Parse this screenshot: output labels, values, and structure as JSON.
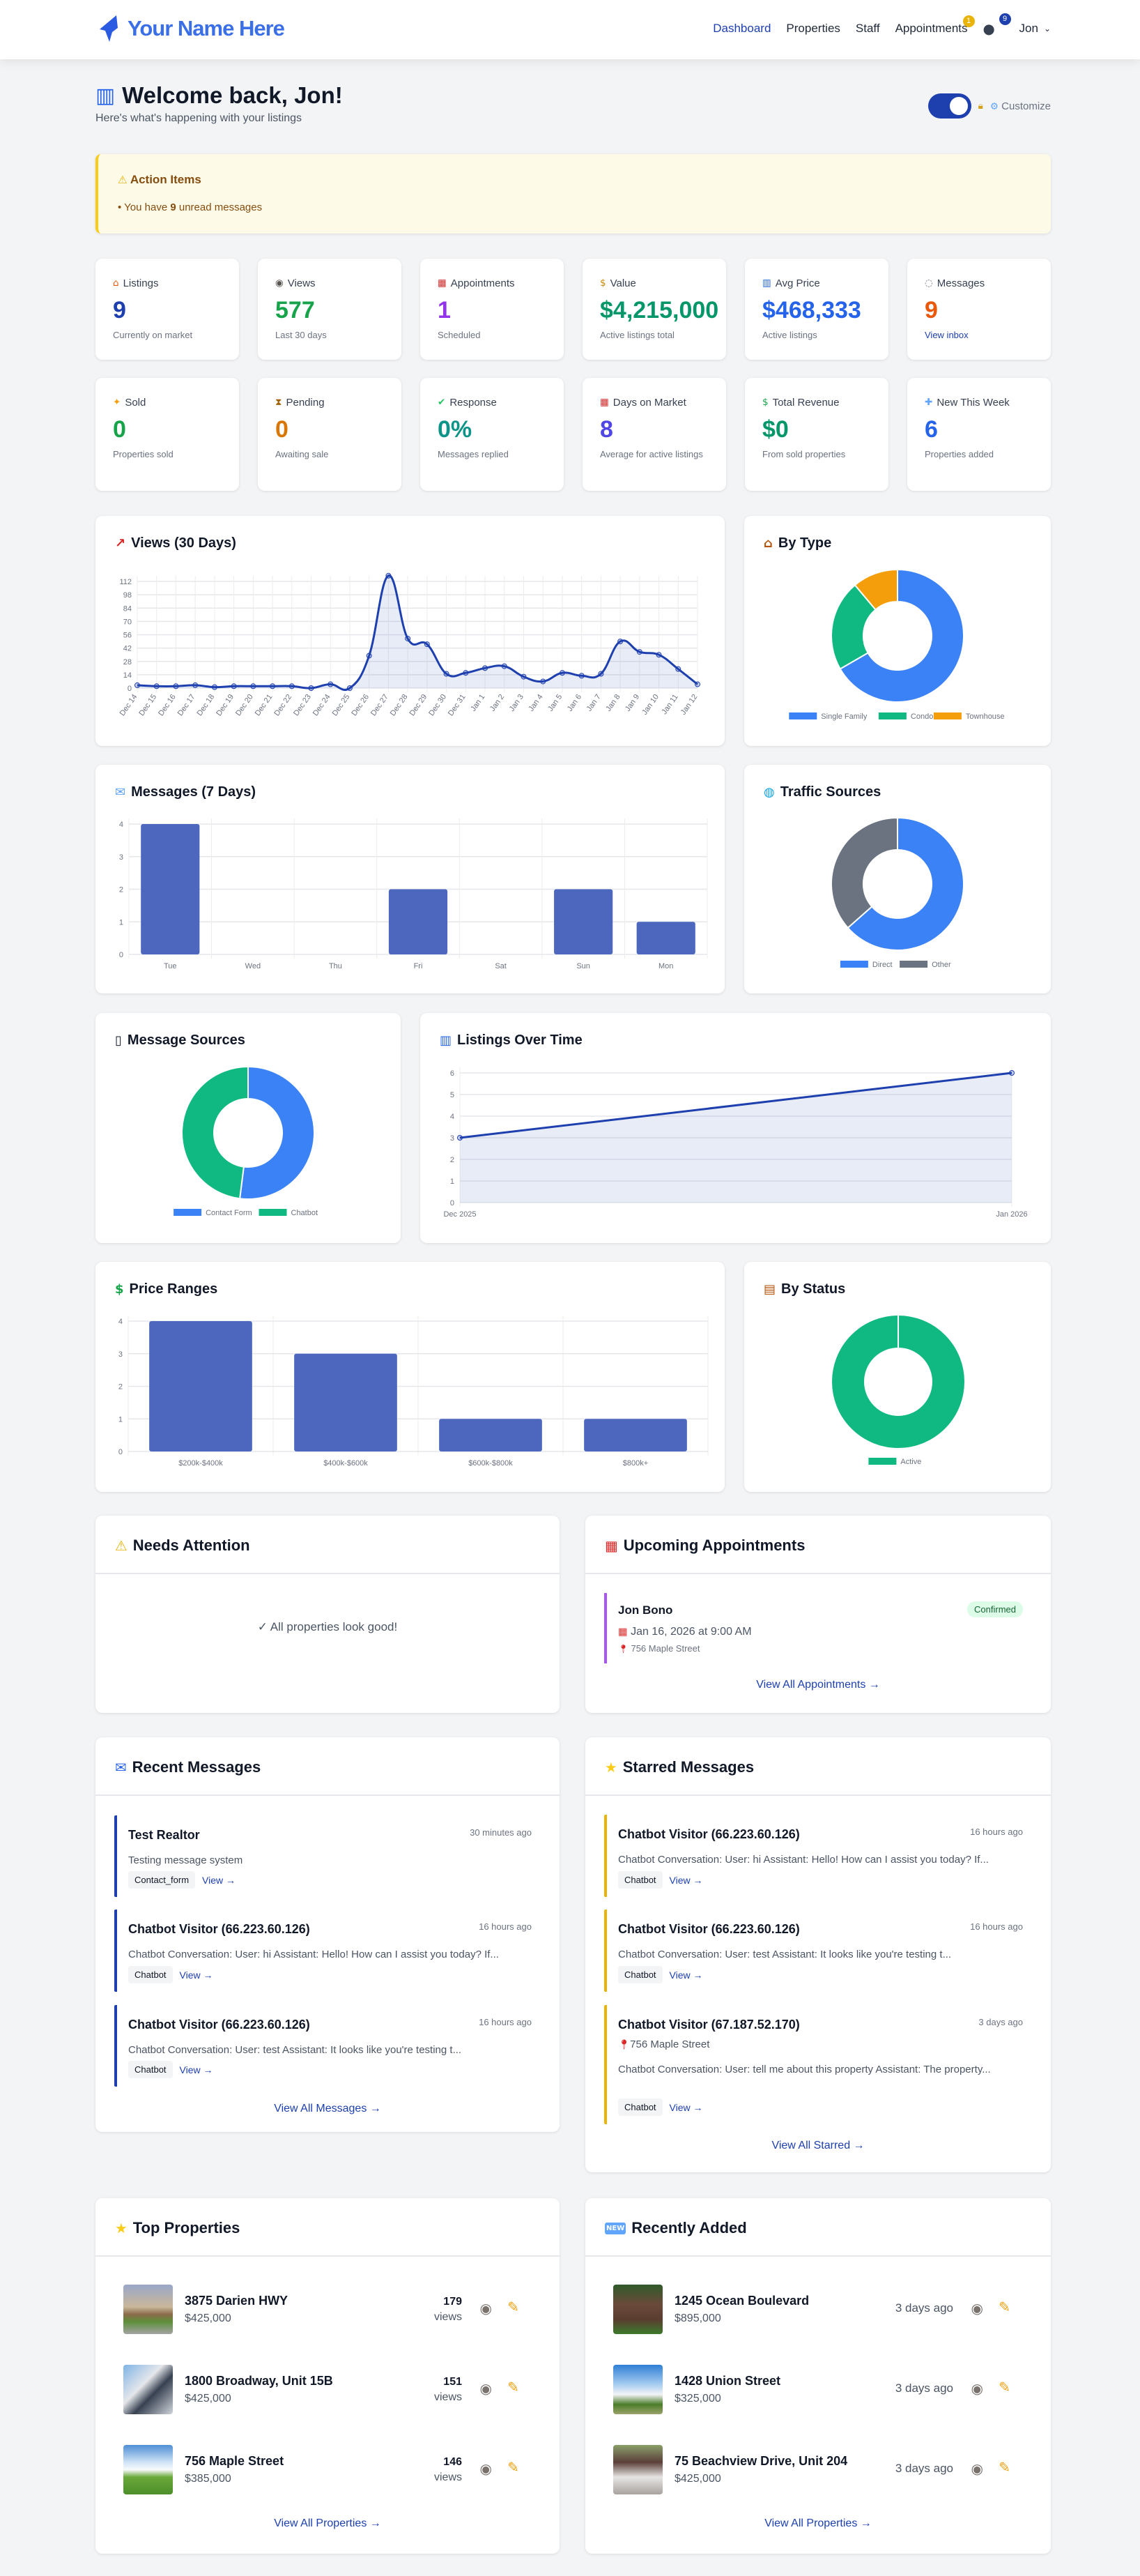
{
  "nav": {
    "brand": "Your Name Here",
    "links": [
      {
        "label": "Dashboard",
        "active": true
      },
      {
        "label": "Properties"
      },
      {
        "label": "Staff"
      },
      {
        "label": "Appointments",
        "badge": "1"
      }
    ],
    "messages_badge": "9",
    "user": "Jon"
  },
  "header": {
    "title": "Welcome back, Jon!",
    "subtitle": "Here's what's happening with your listings",
    "customize": "Customize",
    "toggle_on": true
  },
  "action_items": {
    "title": "Action Items",
    "items": [
      {
        "pre": "You have ",
        "count": "9",
        "post": " unread messages"
      }
    ]
  },
  "stats": [
    {
      "icon": "house-icon",
      "label": "Listings",
      "value": "9",
      "sub": "Currently on market",
      "color": "#1e40af"
    },
    {
      "icon": "eye-icon",
      "label": "Views",
      "value": "577",
      "sub": "Last 30 days",
      "color": "#16a34a"
    },
    {
      "icon": "calendar-icon",
      "label": "Appointments",
      "value": "1",
      "sub": "Scheduled",
      "color": "#9333ea"
    },
    {
      "icon": "money-bag-icon",
      "label": "Value",
      "value": "$4,215,000",
      "sub": "Active listings total",
      "color": "#059669"
    },
    {
      "icon": "bar-chart-icon",
      "label": "Avg Price",
      "value": "$468,333",
      "sub": "Active listings",
      "color": "#2563eb"
    },
    {
      "icon": "speech-bubble-icon",
      "label": "Messages",
      "value": "9",
      "sub": "View inbox",
      "sub_is_link": true,
      "color": "#ea580c"
    },
    {
      "icon": "party-popper-icon",
      "label": "Sold",
      "value": "0",
      "sub": "Properties sold",
      "color": "#16a34a"
    },
    {
      "icon": "hourglass-icon",
      "label": "Pending",
      "value": "0",
      "sub": "Awaiting sale",
      "color": "#d97706"
    },
    {
      "icon": "check-icon",
      "label": "Response",
      "value": "0%",
      "sub": "Messages replied",
      "color": "#0d9488"
    },
    {
      "icon": "calendar-icon",
      "label": "Days on Market",
      "value": "8",
      "sub": "Average for active listings",
      "color": "#4f46e5"
    },
    {
      "icon": "dollar-bill-icon",
      "label": "Total Revenue",
      "value": "$0",
      "sub": "From sold properties",
      "color": "#059669"
    },
    {
      "icon": "new-icon",
      "label": "New This Week",
      "value": "6",
      "sub": "Properties added",
      "color": "#2563eb"
    }
  ],
  "chart_data": [
    {
      "type": "line",
      "title": "Views (30 Days)",
      "smooth": true,
      "fill": true,
      "grid": true,
      "x": [
        "Dec 14",
        "Dec 15",
        "Dec 16",
        "Dec 17",
        "Dec 18",
        "Dec 19",
        "Dec 20",
        "Dec 21",
        "Dec 22",
        "Dec 23",
        "Dec 24",
        "Dec 25",
        "Dec 26",
        "Dec 27",
        "Dec 28",
        "Dec 29",
        "Dec 30",
        "Dec 31",
        "Jan 1",
        "Jan 2",
        "Jan 3",
        "Jan 4",
        "Jan 5",
        "Jan 6",
        "Jan 7",
        "Jan 8",
        "Jan 9",
        "Jan 10",
        "Jan 11",
        "Jan 12"
      ],
      "values": [
        3,
        2,
        2,
        3,
        1,
        2,
        2,
        2,
        2,
        0,
        4,
        0,
        34,
        118,
        52,
        46,
        15,
        16,
        21,
        23,
        12,
        7,
        16,
        13,
        15,
        49,
        38,
        35,
        20,
        4
      ],
      "yticks": [
        0,
        14,
        28,
        42,
        56,
        70,
        84,
        98,
        112
      ],
      "ylim": [
        0,
        112
      ],
      "color": "#1e40af"
    },
    {
      "type": "bar",
      "title": "Messages (7 Days)",
      "grid": true,
      "categories": [
        "Tue",
        "Wed",
        "Thu",
        "Fri",
        "Sat",
        "Sun",
        "Mon"
      ],
      "values": [
        4,
        0,
        0,
        2,
        0,
        2,
        1
      ],
      "yticks": [
        0,
        1,
        2,
        3,
        4
      ],
      "ylim": [
        0,
        4
      ],
      "color": "#4c67bd"
    },
    {
      "type": "line",
      "title": "Listings Over Time",
      "smooth": false,
      "fill": true,
      "grid": true,
      "x": [
        "Dec 2025",
        "Jan 2026"
      ],
      "values": [
        3,
        6
      ],
      "yticks": [
        0,
        1,
        2,
        3,
        4,
        5,
        6
      ],
      "ylim": [
        0,
        6
      ],
      "color": "#1e40af"
    },
    {
      "type": "bar",
      "title": "Price Ranges",
      "grid": true,
      "categories": [
        "$200k-$400k",
        "$400k-$600k",
        "$600k-$800k",
        "$800k+"
      ],
      "values": [
        4,
        3,
        1,
        1
      ],
      "yticks": [
        0,
        1,
        2,
        3,
        4
      ],
      "ylim": [
        0,
        4
      ],
      "color": "#4c67bd"
    },
    {
      "type": "pie",
      "title": "By Type",
      "donut": true,
      "legend": "bottom",
      "labels": [
        "Single Family",
        "Condo",
        "Townhouse"
      ],
      "values": [
        6,
        2,
        1
      ],
      "colors": [
        "#3b82f6",
        "#10b981",
        "#f59e0b"
      ]
    },
    {
      "type": "pie",
      "title": "Traffic Sources",
      "donut": true,
      "legend": "bottom",
      "labels": [
        "Direct",
        "Other"
      ],
      "values": [
        63.5,
        36.5
      ],
      "colors": [
        "#3b82f6",
        "#6b7280"
      ]
    },
    {
      "type": "pie",
      "title": "Message Sources",
      "donut": true,
      "legend": "bottom",
      "labels": [
        "Contact Form",
        "Chatbot"
      ],
      "values": [
        52,
        48
      ],
      "colors": [
        "#3b82f6",
        "#10b981"
      ]
    },
    {
      "type": "pie",
      "title": "By Status",
      "donut": true,
      "legend": "bottom",
      "labels": [
        "Active"
      ],
      "values": [
        9
      ],
      "colors": [
        "#10b981"
      ]
    }
  ],
  "needs_attention": {
    "title": "Needs Attention",
    "empty": "✓ All properties look good!"
  },
  "appointments": {
    "title": "Upcoming Appointments",
    "items": [
      {
        "name": "Jon Bono",
        "status": "Confirmed",
        "datetime": "Jan 16, 2026 at 9:00 AM",
        "address": "756 Maple Street"
      }
    ],
    "view_all": "View All Appointments →"
  },
  "recent_messages": {
    "title": "Recent Messages",
    "items": [
      {
        "name": "Test Realtor",
        "time": "30 minutes ago",
        "preview": "Testing message system",
        "source": "Contact_form",
        "view": "View →"
      },
      {
        "name": "Chatbot Visitor (66.223.60.126)",
        "time": "16 hours ago",
        "preview": "Chatbot Conversation: User: hi Assistant: Hello! How can I assist you today? If...",
        "source": "Chatbot",
        "view": "View →"
      },
      {
        "name": "Chatbot Visitor (66.223.60.126)",
        "time": "16 hours ago",
        "preview": "Chatbot Conversation: User: test Assistant: It looks like you're testing t...",
        "source": "Chatbot",
        "view": "View →"
      }
    ],
    "view_all": "View All Messages →"
  },
  "starred_messages": {
    "title": "Starred Messages",
    "items": [
      {
        "name": "Chatbot Visitor (66.223.60.126)",
        "time": "16 hours ago",
        "preview": "Chatbot Conversation: User: hi Assistant: Hello! How can I assist you today? If...",
        "source": "Chatbot",
        "view": "View →"
      },
      {
        "name": "Chatbot Visitor (66.223.60.126)",
        "time": "16 hours ago",
        "preview": "Chatbot Conversation: User: test Assistant: It looks like you're testing t...",
        "source": "Chatbot",
        "view": "View →"
      },
      {
        "name": "Chatbot Visitor (67.187.52.170)",
        "time": "3 days ago",
        "location": "756 Maple Street",
        "preview": "Chatbot Conversation: User: tell me about this property Assistant: The property...",
        "source": "Chatbot",
        "view": "View →"
      }
    ],
    "view_all": "View All Starred →"
  },
  "top_properties": {
    "title": "Top Properties",
    "items": [
      {
        "name": "3875 Darien HWY",
        "price": "$425,000",
        "views": "179",
        "views_unit": "views"
      },
      {
        "name": "1800 Broadway, Unit 15B",
        "price": "$425,000",
        "views": "151",
        "views_unit": "views"
      },
      {
        "name": "756 Maple Street",
        "price": "$385,000",
        "views": "146",
        "views_unit": "views"
      }
    ],
    "view_all": "View All Properties →"
  },
  "recently_added": {
    "title": "Recently Added",
    "items": [
      {
        "name": "1245 Ocean Boulevard",
        "price": "$895,000",
        "added": "3 days ago"
      },
      {
        "name": "1428 Union Street",
        "price": "$325,000",
        "added": "3 days ago"
      },
      {
        "name": "75 Beachview Drive, Unit 204",
        "price": "$425,000",
        "added": "3 days ago"
      }
    ],
    "view_all": "View All Properties →"
  }
}
